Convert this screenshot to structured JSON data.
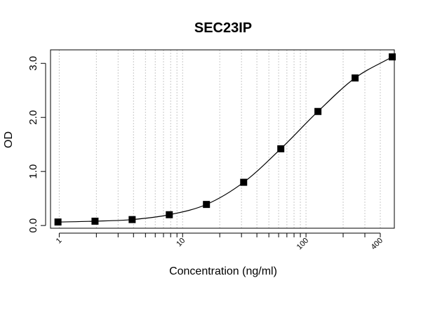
{
  "chart_data": {
    "type": "scatter",
    "title": "SEC23IP",
    "xlabel": "Concentration (ng/ml)",
    "ylabel": "OD",
    "x_scale": "log",
    "xlim": [
      0.85,
      520
    ],
    "ylim": [
      -0.05,
      3.25
    ],
    "x_ticks": [
      {
        "value": 1,
        "label": "1"
      },
      {
        "value": 10,
        "label": "10"
      },
      {
        "value": 100,
        "label": "100"
      },
      {
        "value": 400,
        "label": "400"
      }
    ],
    "y_ticks": [
      {
        "value": 0,
        "label": "0.0"
      },
      {
        "value": 1,
        "label": "1.0"
      },
      {
        "value": 2,
        "label": "2.0"
      },
      {
        "value": 3,
        "label": "3.0"
      }
    ],
    "x_gridlines": [
      1,
      2,
      3,
      4,
      5,
      6,
      7,
      8,
      9,
      10,
      20,
      30,
      40,
      50,
      60,
      70,
      80,
      90,
      100,
      200,
      300,
      400
    ],
    "grid": true,
    "series": [
      {
        "x": [
          0.977,
          1.95,
          3.9,
          7.8,
          15.6,
          31.25,
          62.5,
          125,
          250,
          500
        ],
        "y": [
          0.065,
          0.08,
          0.11,
          0.2,
          0.39,
          0.8,
          1.42,
          2.11,
          2.73,
          3.12
        ],
        "marker": "square",
        "line": "fitted-curve",
        "color": "#000000"
      }
    ]
  }
}
